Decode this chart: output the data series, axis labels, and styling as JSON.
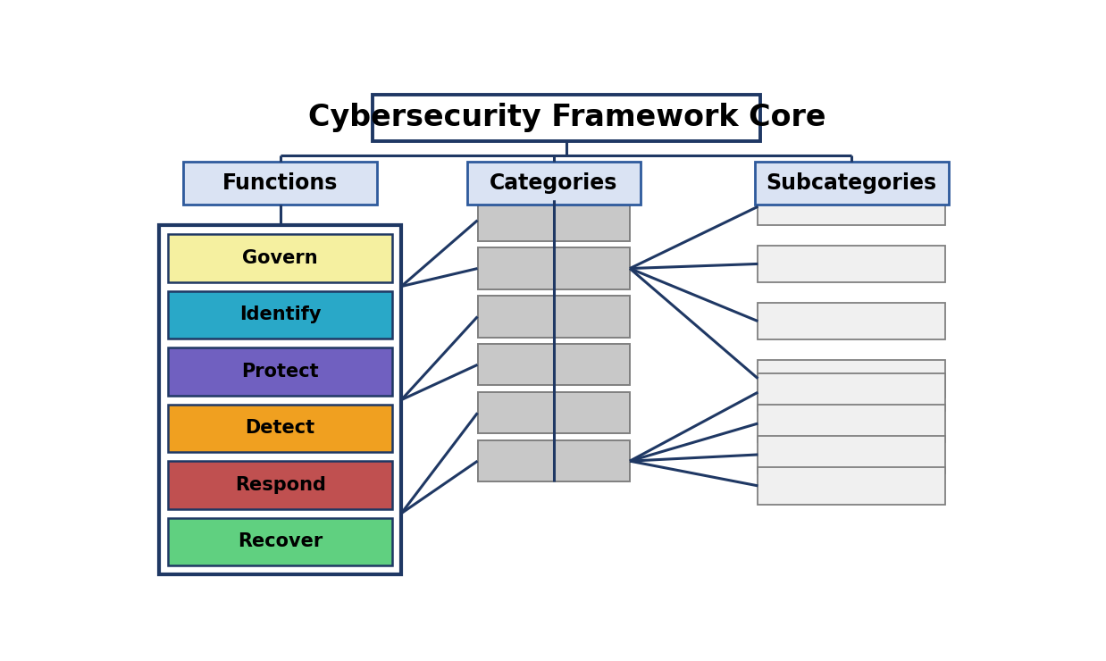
{
  "title": "Cybersecurity Framework Core",
  "title_box_color": "#FFFFFF",
  "title_border_color": "#1F3864",
  "title_fontsize": 24,
  "header_bg": "#DAE3F3",
  "header_border": "#2E5A9C",
  "header_labels": [
    "Functions",
    "Categories",
    "Subcategories"
  ],
  "header_fontsize": 17,
  "functions": [
    {
      "label": "Govern",
      "color": "#F5F0A0"
    },
    {
      "label": "Identify",
      "color": "#29A8C8"
    },
    {
      "label": "Protect",
      "color": "#7060C0"
    },
    {
      "label": "Detect",
      "color": "#F0A020"
    },
    {
      "label": "Respond",
      "color": "#C05050"
    },
    {
      "label": "Recover",
      "color": "#60D080"
    }
  ],
  "func_outer_bg": "#FFFFFF",
  "func_outer_border": "#1F3864",
  "func_fontsize": 15,
  "cat_color": "#C8C8C8",
  "cat_border": "#808080",
  "subcat_color": "#F0F0F0",
  "subcat_border": "#808080",
  "line_color": "#1F3864",
  "line_width": 2.2,
  "bg_color": "#FFFFFF",
  "fig_w": 12.38,
  "fig_h": 7.4
}
